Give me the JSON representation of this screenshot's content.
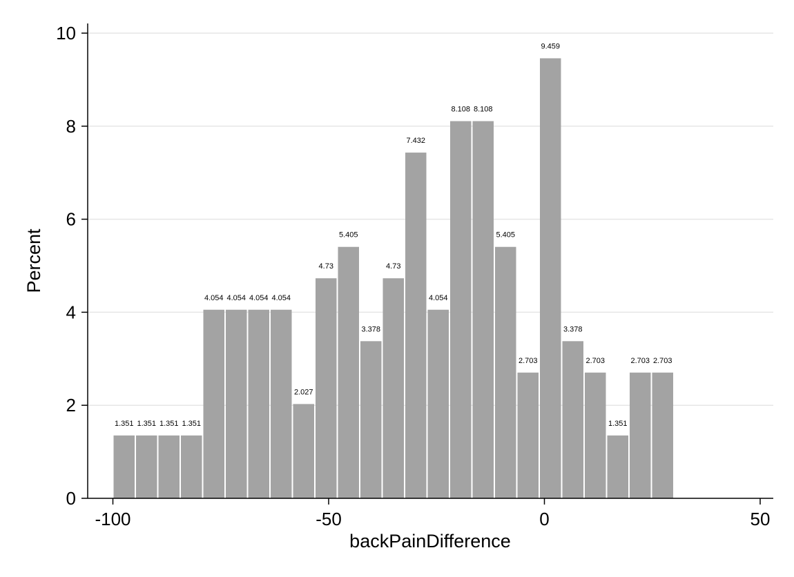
{
  "chart_data": {
    "type": "bar",
    "xlabel": "backPainDifference",
    "ylabel": "Percent",
    "xlim": [
      -105,
      52
    ],
    "ylim": [
      0,
      10.4
    ],
    "xticks": [
      -100,
      -50,
      0,
      50
    ],
    "yticks": [
      0,
      2,
      4,
      6,
      8,
      10
    ],
    "bin_width": 5.2,
    "grid": true,
    "bar_color": "#a3a3a3",
    "bars": [
      {
        "x": -100.0,
        "value": 1.351,
        "label": "1.351"
      },
      {
        "x": -94.8,
        "value": 1.351,
        "label": "1.351"
      },
      {
        "x": -89.6,
        "value": 1.351,
        "label": "1.351"
      },
      {
        "x": -84.4,
        "value": 1.351,
        "label": "1.351"
      },
      {
        "x": -79.2,
        "value": 4.054,
        "label": "4.054"
      },
      {
        "x": -74.0,
        "value": 4.054,
        "label": "4.054"
      },
      {
        "x": -68.8,
        "value": 4.054,
        "label": "4.054"
      },
      {
        "x": -63.6,
        "value": 4.054,
        "label": "4.054"
      },
      {
        "x": -58.4,
        "value": 2.027,
        "label": "2.027"
      },
      {
        "x": -53.2,
        "value": 4.73,
        "label": "4.73"
      },
      {
        "x": -48.0,
        "value": 5.405,
        "label": "5.405"
      },
      {
        "x": -42.8,
        "value": 3.378,
        "label": "3.378"
      },
      {
        "x": -37.6,
        "value": 4.73,
        "label": "4.73"
      },
      {
        "x": -32.4,
        "value": 7.432,
        "label": "7.432"
      },
      {
        "x": -27.2,
        "value": 4.054,
        "label": "4.054"
      },
      {
        "x": -22.0,
        "value": 8.108,
        "label": "8.108"
      },
      {
        "x": -16.8,
        "value": 8.108,
        "label": "8.108"
      },
      {
        "x": -11.6,
        "value": 5.405,
        "label": "5.405"
      },
      {
        "x": -6.4,
        "value": 2.703,
        "label": "2.703"
      },
      {
        "x": -1.2,
        "value": 9.459,
        "label": "9.459"
      },
      {
        "x": 4.0,
        "value": 3.378,
        "label": "3.378"
      },
      {
        "x": 9.2,
        "value": 2.703,
        "label": "2.703"
      },
      {
        "x": 14.4,
        "value": 1.351,
        "label": "1.351"
      },
      {
        "x": 19.6,
        "value": 2.703,
        "label": "2.703"
      },
      {
        "x": 24.8,
        "value": 2.703,
        "label": "2.703"
      }
    ]
  }
}
